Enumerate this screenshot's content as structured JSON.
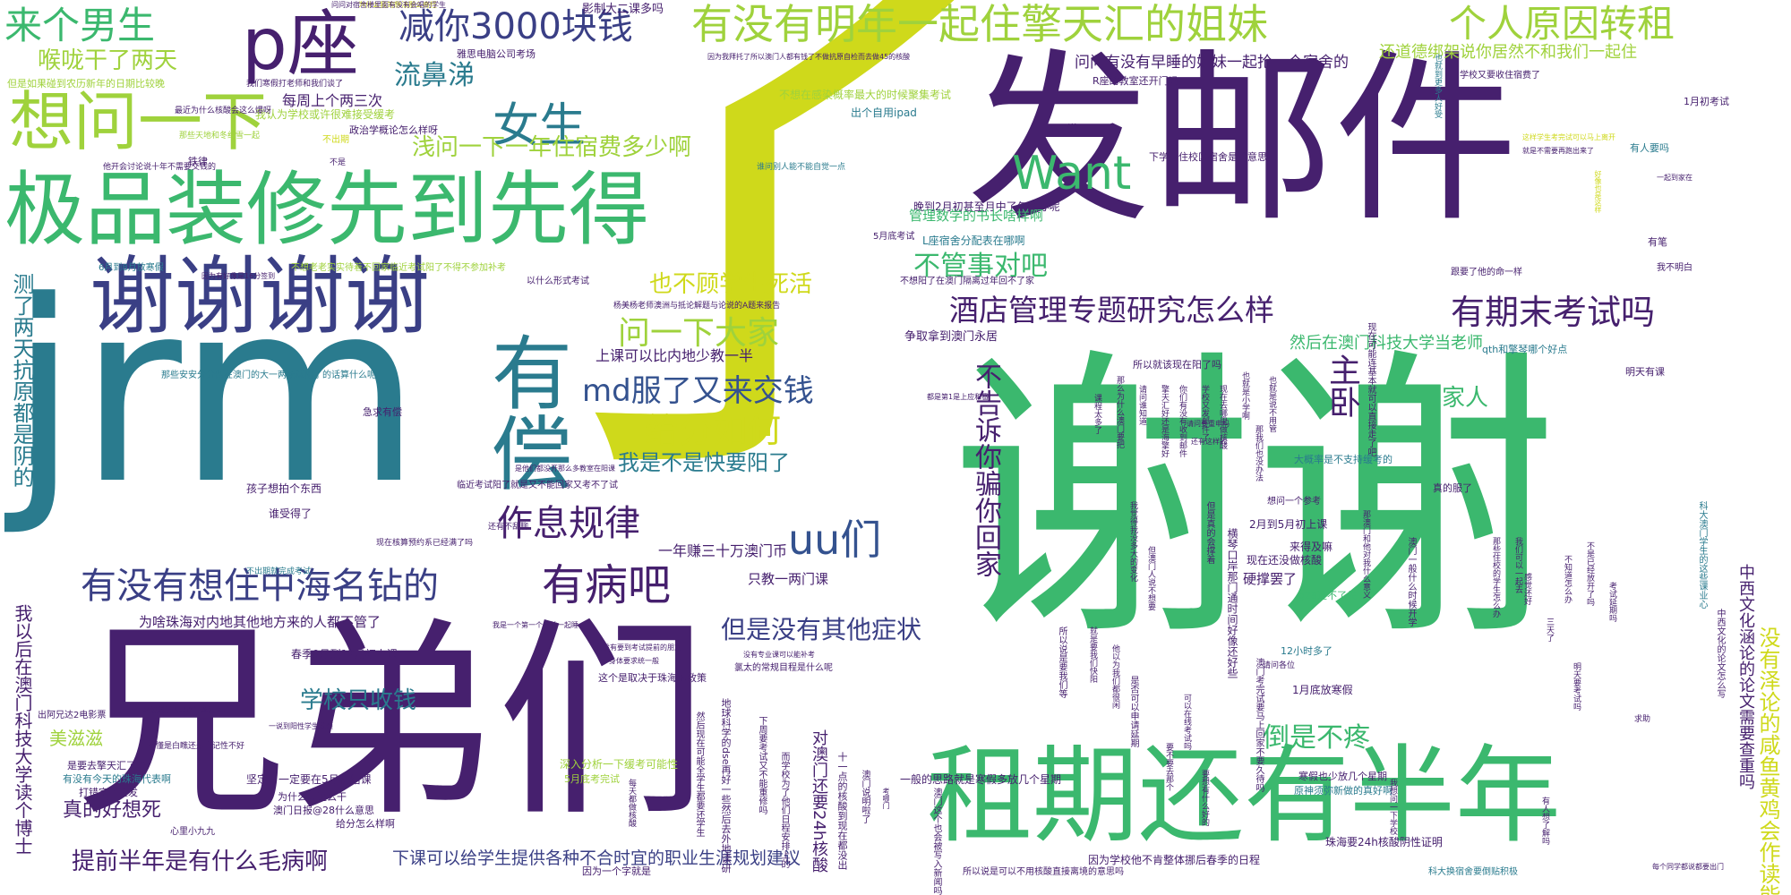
{
  "palette": {
    "purple": "#46206e",
    "teal": "#2a7b8e",
    "green": "#3bb86e",
    "lime": "#9fd23c",
    "yellow": "#cfd91b",
    "blue": "#34528f",
    "navy": "#3a3f85",
    "seafoam": "#27a08a"
  },
  "words": [
    {
      "text": "了",
      "color": "#cfd91b"
    },
    {
      "text": "谢谢",
      "color": "#3bb86e"
    },
    {
      "text": "兄弟们",
      "color": "#46206e"
    },
    {
      "text": "jrm",
      "color": "#2a7b8e"
    },
    {
      "text": "发邮件",
      "color": "#46206e"
    },
    {
      "text": "租期还有半年",
      "color": "#3bb86e"
    },
    {
      "text": "极品装修先到先得",
      "color": "#3bb86e"
    },
    {
      "text": "谢谢谢谢",
      "color": "#3a3f85"
    },
    {
      "text": "p座",
      "color": "#46206e"
    },
    {
      "text": "有没有明年一起住擎天汇的姐妹",
      "color": "#9fd23c"
    },
    {
      "text": "想问一下",
      "color": "#9fd23c"
    },
    {
      "text": "有偿",
      "color": "#2a7b8e"
    },
    {
      "text": "个人原因转租",
      "color": "#9fd23c"
    },
    {
      "text": "减你3000块钱",
      "color": "#3a3f85"
    },
    {
      "text": "来个男生",
      "color": "#3bb86e"
    },
    {
      "text": "女生",
      "color": "#2a7b8e"
    },
    {
      "text": "Want",
      "color": "#3bb86e"
    },
    {
      "text": "酒店管理专题研究怎么样",
      "color": "#46206e"
    },
    {
      "text": "有期末考试吗",
      "color": "#46206e"
    },
    {
      "text": "有没有想住中海名钻的",
      "color": "#3a3f85"
    },
    {
      "text": "有病吧",
      "color": "#46206e"
    },
    {
      "text": "作息规律",
      "color": "#46206e"
    },
    {
      "text": "uu们",
      "color": "#34528f"
    },
    {
      "text": "给分如何",
      "color": "#cfd91b"
    },
    {
      "text": "问一下大家",
      "color": "#9fd23c"
    },
    {
      "text": "md服了又来交钱",
      "color": "#34528f"
    },
    {
      "text": "不告诉你骗你回家",
      "color": "#46206e"
    },
    {
      "text": "不管事对吧",
      "color": "#3bb86e"
    },
    {
      "text": "中西文化涵论的论文需要查重吗",
      "color": "#46206e"
    },
    {
      "text": "没有泽论的咸鱼黄鸡会作读能活",
      "color": "#cfd91b"
    },
    {
      "text": "测了两天抗原都是阴的",
      "color": "#2a7b8e"
    },
    {
      "text": "提前半年是有什么毛病啊",
      "color": "#46206e"
    },
    {
      "text": "下课可以给学生提供各种不合时宜的职业生涯规划建议",
      "color": "#3a3f85"
    },
    {
      "text": "学校只收钱",
      "color": "#2a7b8e"
    },
    {
      "text": "但是没有其他症状",
      "color": "#3a3f85"
    },
    {
      "text": "倒是不疼",
      "color": "#3bb86e"
    },
    {
      "text": "主卧",
      "color": "#46206e"
    },
    {
      "text": "家人",
      "color": "#3bb86e"
    },
    {
      "text": "喉咙干了两天",
      "color": "#9fd23c"
    },
    {
      "text": "流鼻涕",
      "color": "#2a7b8e"
    },
    {
      "text": "浅问一下一年住宿费多少啊",
      "color": "#9fd23c"
    },
    {
      "text": "也不顾学生死活",
      "color": "#cfd91b"
    },
    {
      "text": "我是不是快要阳了",
      "color": "#2a7b8e"
    },
    {
      "text": "真的好想死",
      "color": "#46206e"
    },
    {
      "text": "美滋滋",
      "color": "#9fd23c"
    },
    {
      "text": "我以后在澳门科技大学读个博士",
      "color": "#46206e"
    },
    {
      "text": "然后在澳门科技大学当老师",
      "color": "#3bb86e"
    },
    {
      "text": "问问有没有早睡的姐妹一起抢一个宿舍的",
      "color": "#46206e"
    },
    {
      "text": "还道德绑架说你居然不和我们一起住",
      "color": "#9fd23c"
    },
    {
      "text": "影制大二课多吗",
      "color": "#46206e"
    },
    {
      "text": "雅思电脑公司考场",
      "color": "#46206e"
    },
    {
      "text": "但是如果碰到农历新年的日期比较晚",
      "color": "#9fd23c"
    },
    {
      "text": "每周上个两三次",
      "color": "#46206e"
    },
    {
      "text": "我认为学校或许很难接受缓考",
      "color": "#9fd23c"
    },
    {
      "text": "一年赚三十万澳门币",
      "color": "#46206e"
    },
    {
      "text": "只教一两门课",
      "color": "#46206e"
    },
    {
      "text": "上课可以比内地少教一半",
      "color": "#46206e"
    },
    {
      "text": "为啥珠海对内地其他地方来的人都不管了",
      "color": "#46206e"
    },
    {
      "text": "春季9月到12月初上课",
      "color": "#46206e"
    },
    {
      "text": "一般的思路就是寒假多放几个星期",
      "color": "#46206e"
    },
    {
      "text": "对澳门还要24h核酸",
      "color": "#46206e"
    },
    {
      "text": "1月底放寒假",
      "color": "#46206e"
    },
    {
      "text": "2月到5月初上课",
      "color": "#46206e"
    },
    {
      "text": "硬撑罢了",
      "color": "#46206e"
    },
    {
      "text": "现在还没做核酸",
      "color": "#46206e"
    },
    {
      "text": "珠海要24h核酸阴性证明",
      "color": "#46206e"
    },
    {
      "text": "不想在感染概率最大的时候聚集考试",
      "color": "#9fd23c"
    },
    {
      "text": "政治学概论怎么样呀",
      "color": "#46206e"
    },
    {
      "text": "出个自用ipad",
      "color": "#2a7b8e"
    },
    {
      "text": "晚到2月初甚至月中了怎么办呢",
      "color": "#46206e"
    },
    {
      "text": "L座宿舍分配表在哪啊",
      "color": "#2a7b8e"
    },
    {
      "text": "管理数学的书长啥样啊",
      "color": "#3bb86e"
    },
    {
      "text": "5月底考试",
      "color": "#46206e"
    },
    {
      "text": "1月初考试",
      "color": "#46206e"
    },
    {
      "text": "有人要吗",
      "color": "#2a7b8e"
    },
    {
      "text": "争取拿到澳门永居",
      "color": "#46206e"
    },
    {
      "text": "所以就该现在阳了吗",
      "color": "#46206e"
    },
    {
      "text": "大概率是不支持缓考的",
      "color": "#2a7b8e"
    },
    {
      "text": "真的服了",
      "color": "#46206e"
    },
    {
      "text": "来得及嘛",
      "color": "#46206e"
    },
    {
      "text": "12小时多了",
      "color": "#2a7b8e"
    },
    {
      "text": "孩子想拍个东西",
      "color": "#46206e"
    },
    {
      "text": "谁受得了",
      "color": "#46206e"
    },
    {
      "text": "这个是取决于珠海的政策",
      "color": "#46206e"
    },
    {
      "text": "深入分析一下缓考可能性",
      "color": "#9fd23c"
    },
    {
      "text": "5月底考完试",
      "color": "#9fd23c"
    },
    {
      "text": "坚定了一定要在5月初结课",
      "color": "#46206e"
    },
    {
      "text": "为什么要这么干",
      "color": "#46206e"
    },
    {
      "text": "澳门日报@28什么意思",
      "color": "#46206e"
    },
    {
      "text": "给分怎么样啊",
      "color": "#46206e"
    },
    {
      "text": "打错字了重发",
      "color": "#46206e"
    },
    {
      "text": "是要去擎天汇了吗",
      "color": "#46206e"
    },
    {
      "text": "有没有今天的珠海代表啊",
      "color": "#2a7b8e"
    },
    {
      "text": "因为一个字就是",
      "color": "#46206e"
    },
    {
      "text": "因为学校他不肯整体挪后春季的日程",
      "color": "#46206e"
    },
    {
      "text": "所以说是可以不用核酸直接离境的意思吗",
      "color": "#46206e"
    },
    {
      "text": "科大换宿舍要倒贴积极",
      "color": "#2a7b8e"
    },
    {
      "text": "不用说",
      "color": "#46206e"
    },
    {
      "text": "不出期",
      "color": "#cfd91b"
    },
    {
      "text": "以什么形式考试",
      "color": "#46206e"
    },
    {
      "text": "明天有课",
      "color": "#46206e"
    },
    {
      "text": "有笔",
      "color": "#46206e"
    },
    {
      "text": "我不明白",
      "color": "#46206e"
    },
    {
      "text": "出阿兄达2电影票",
      "color": "#46206e"
    },
    {
      "text": "心里小九九",
      "color": "#46206e"
    },
    {
      "text": "急求有偿",
      "color": "#46206e"
    },
    {
      "text": "6月到8月放寒假",
      "color": "#2a7b8e"
    },
    {
      "text": "学校又要收住宿费了",
      "color": "#46206e"
    },
    {
      "text": "R座的教室还开门吗",
      "color": "#46206e"
    },
    {
      "text": "下学期住校区宿舍是啥意思",
      "color": "#46206e"
    },
    {
      "text": "跟要了他的命一样",
      "color": "#46206e"
    },
    {
      "text": "qth和擎琴哪个好点",
      "color": "#2a7b8e"
    },
    {
      "text": "想问一个参考",
      "color": "#46206e"
    },
    {
      "text": "g28过不了关",
      "color": "#3bb86e"
    },
    {
      "text": "寒假也少放几个星期",
      "color": "#46206e"
    },
    {
      "text": "原神须弥新做的真好啊",
      "color": "#2a7b8e"
    },
    {
      "text": "为什么我的想法那么奇怪",
      "color": "#cfd91b"
    },
    {
      "text": "问问对宿舍楼里面有没有会唱的学生",
      "color": "#46206e"
    },
    {
      "text": "我们寒假打老师和我们谈了",
      "color": "#46206e"
    },
    {
      "text": "最近为什么核酸会这么爆呀",
      "color": "#46206e"
    },
    {
      "text": "那些天地和冬纪雪一起",
      "color": "#9fd23c"
    },
    {
      "text": "铁律",
      "color": "#46206e"
    },
    {
      "text": "他开会讨论说十年不需要交钱的",
      "color": "#46206e"
    },
    {
      "text": "不是",
      "color": "#46206e"
    },
    {
      "text": "谁问别人能不能自觉一点",
      "color": "#2a7b8e"
    },
    {
      "text": "因为我拜托了所以澳门人都有钱了不做抗原自检而去做45的核酸",
      "color": "#46206e"
    },
    {
      "text": "不想老老实实待着不回家临近考试阳了不得不参加补考",
      "color": "#9fd23c"
    },
    {
      "text": "因为有好像是16分签到",
      "color": "#46206e"
    },
    {
      "text": "杨美杨老师澳洲与抵论解题与论说的A题来报告",
      "color": "#46206e"
    },
    {
      "text": "那些安安分分留在澳门的大一两场试阳了的话算什么呢",
      "color": "#2a7b8e"
    },
    {
      "text": "这样学生考完试可以马上离开",
      "color": "#cfd91b"
    },
    {
      "text": "就是不需要再跑出来了",
      "color": "#46206e"
    },
    {
      "text": "不出期就完成考试",
      "color": "#2a7b8e"
    },
    {
      "text": "不懂是白瞧还是高记性不好",
      "color": "#46206e"
    },
    {
      "text": "环境科学的思路问题怎么样",
      "color": "#46206e"
    },
    {
      "text": "一说到阳性学生就烦",
      "color": "#46206e"
    },
    {
      "text": "身体要求统一般",
      "color": "#46206e"
    },
    {
      "text": "有没有要到考试提前的朋友",
      "color": "#46206e"
    },
    {
      "text": "我是一个第一个月前一起睡",
      "color": "#46206e"
    },
    {
      "text": "没有专业课可以能补考",
      "color": "#46206e"
    },
    {
      "text": "氯太的常规目程是什么呢",
      "color": "#46206e"
    },
    {
      "text": "现在核算预约系已经满了吗",
      "color": "#46206e"
    },
    {
      "text": "还有不乱聊",
      "color": "#46206e"
    },
    {
      "text": "临近考试阳了就是又不能回家又考不了试",
      "color": "#46206e"
    },
    {
      "text": "是他们都没开那么多教室在阳课",
      "color": "#46206e"
    },
    {
      "text": "不想阳了在澳门隔离过年回不了家",
      "color": "#46206e"
    },
    {
      "text": "都是第1是上应和番",
      "color": "#46206e"
    },
    {
      "text": "请问要重申吗",
      "color": "#46206e"
    },
    {
      "text": "也就是小学啊",
      "color": "#46206e"
    },
    {
      "text": "还有这样的",
      "color": "#46206e"
    },
    {
      "text": "但是真的会撑着",
      "color": "#46206e"
    },
    {
      "text": "那澳门和他对我什么意义",
      "color": "#46206e"
    },
    {
      "text": "澳门一般什么时候开学",
      "color": "#46206e"
    },
    {
      "text": "科大澳门学生的这些课业心",
      "color": "#46206e"
    },
    {
      "text": "现在可能连基本就可以直接走了吧",
      "color": "#46206e"
    },
    {
      "text": "也就到更多人好受",
      "color": "#46206e"
    },
    {
      "text": "好像也是这样",
      "color": "#46206e"
    },
    {
      "text": "一起到家在",
      "color": "#46206e"
    },
    {
      "text": "每个同学都说都要出门",
      "color": "#46206e"
    },
    {
      "text": "横琴口岸那门通时间好像还好些",
      "color": "#46206e"
    },
    {
      "text": "澳门考完试要马上回家不要久待吗",
      "color": "#46206e"
    },
    {
      "text": "地球科学的dse再好一些然后去外地读研",
      "color": "#46206e"
    },
    {
      "text": "然后现在可能全学生都要还学生",
      "color": "#46206e"
    },
    {
      "text": "中西文化的论文怎么写",
      "color": "#46206e"
    },
    {
      "text": "要不要去那个",
      "color": "#46206e"
    },
    {
      "text": "要想有什么好的",
      "color": "#46206e"
    },
    {
      "text": "下周要考试又不能重修吗",
      "color": "#46206e"
    },
    {
      "text": "而学校为了他们日程安排上的",
      "color": "#46206e"
    },
    {
      "text": "十一点的核酸到现在都没出",
      "color": "#46206e"
    },
    {
      "text": "澳门说明啦了",
      "color": "#46206e"
    },
    {
      "text": "考哪门",
      "color": "#46206e"
    },
    {
      "text": "澳门这个也会被写入新闻吗",
      "color": "#46206e"
    },
    {
      "text": "每天都做核酸",
      "color": "#46206e"
    },
    {
      "text": "我觉得我没多大的变化",
      "color": "#46206e"
    },
    {
      "text": "但澳门人说不想要",
      "color": "#46206e"
    },
    {
      "text": "那么为什么澳门要把",
      "color": "#46206e"
    },
    {
      "text": "请问各位",
      "color": "#46206e"
    },
    {
      "text": "明天要考试吗",
      "color": "#46206e"
    },
    {
      "text": "有人想了解吗",
      "color": "#46206e"
    },
    {
      "text": "我想问一下学校",
      "color": "#46206e"
    },
    {
      "text": "也就是说不用管",
      "color": "#46206e"
    },
    {
      "text": "那我们也没办法",
      "color": "#46206e"
    },
    {
      "text": "所以说是要我们等",
      "color": "#46206e"
    },
    {
      "text": "就是要我们快阳",
      "color": "#46206e"
    },
    {
      "text": "他以为我们都很闲",
      "color": "#46206e"
    },
    {
      "text": "是否可以申请延期",
      "color": "#46206e"
    },
    {
      "text": "可以在线考试吗",
      "color": "#46206e"
    },
    {
      "text": "那些住校的学生怎么办",
      "color": "#46206e"
    },
    {
      "text": "我们可以一起去",
      "color": "#46206e"
    },
    {
      "text": "课程太多了",
      "color": "#46206e"
    },
    {
      "text": "请问谁知道",
      "color": "#46206e"
    },
    {
      "text": "擎天汇好还是海擎好",
      "color": "#46206e"
    },
    {
      "text": "你们有没有收到邮件",
      "color": "#46206e"
    },
    {
      "text": "学校又发邮件了",
      "color": "#46206e"
    },
    {
      "text": "现在去哪里做核酸",
      "color": "#46206e"
    },
    {
      "text": "感觉还好",
      "color": "#46206e"
    },
    {
      "text": "三天了",
      "color": "#46206e"
    },
    {
      "text": "不知道怎么办",
      "color": "#46206e"
    },
    {
      "text": "不是已经放开了吗",
      "color": "#46206e"
    },
    {
      "text": "考试延期吗",
      "color": "#46206e"
    },
    {
      "text": "求助",
      "color": "#46206e"
    }
  ]
}
